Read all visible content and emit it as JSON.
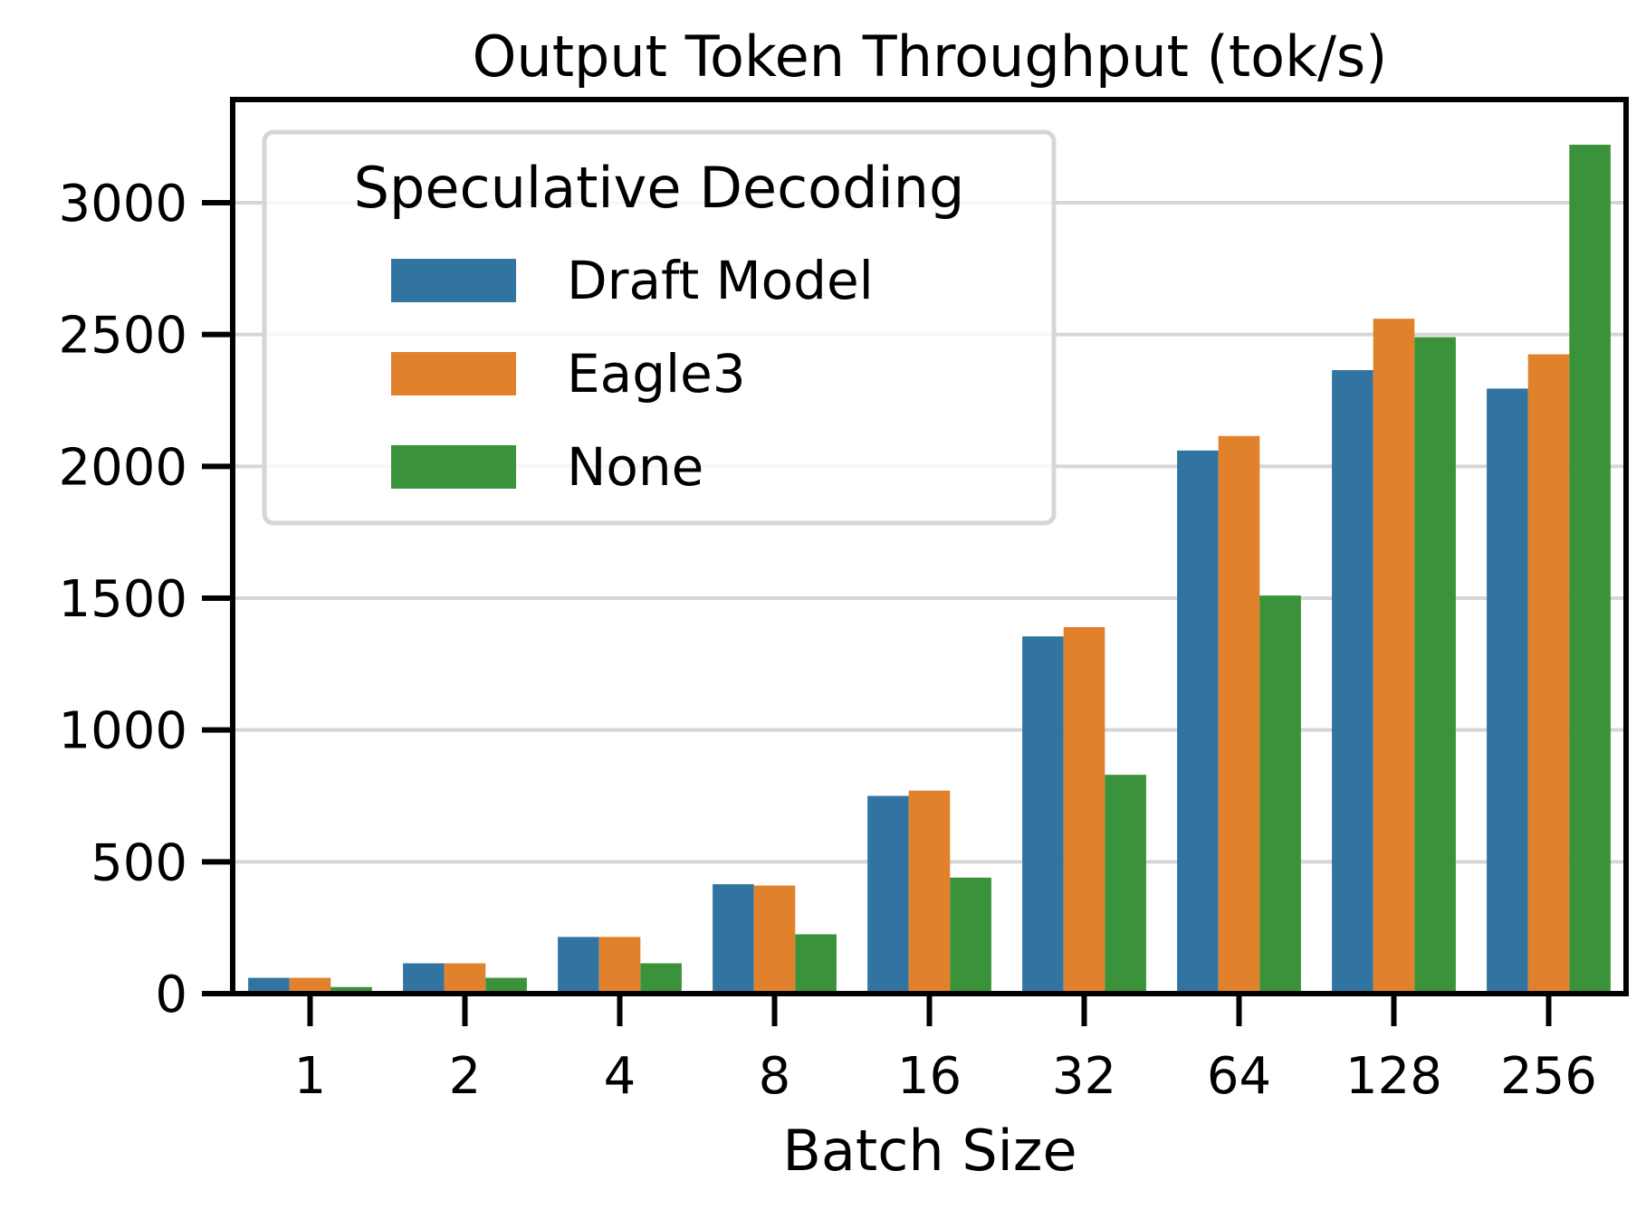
{
  "chart_data": {
    "type": "bar",
    "title": "Output Token Throughput (tok/s)",
    "xlabel": "Batch Size",
    "ylabel": "",
    "categories": [
      "1",
      "2",
      "4",
      "8",
      "16",
      "32",
      "64",
      "128",
      "256"
    ],
    "series": [
      {
        "name": "Draft Model",
        "color": "#3274a1",
        "values": [
          60,
          115,
          215,
          415,
          750,
          1355,
          2060,
          2365,
          2295
        ]
      },
      {
        "name": "Eagle3",
        "color": "#e1812c",
        "values": [
          60,
          115,
          215,
          410,
          770,
          1390,
          2115,
          2560,
          2425
        ]
      },
      {
        "name": "None",
        "color": "#3a923a",
        "values": [
          25,
          60,
          115,
          225,
          440,
          830,
          1510,
          2490,
          3220
        ]
      }
    ],
    "ylim": [
      0,
      3380
    ],
    "yticks": [
      0,
      500,
      1000,
      1500,
      2000,
      2500,
      3000
    ],
    "grid": {
      "y": true,
      "x": false,
      "color": "#d6d6d6"
    },
    "legend": {
      "title": "Speculative Decoding",
      "position": "upper left"
    }
  }
}
